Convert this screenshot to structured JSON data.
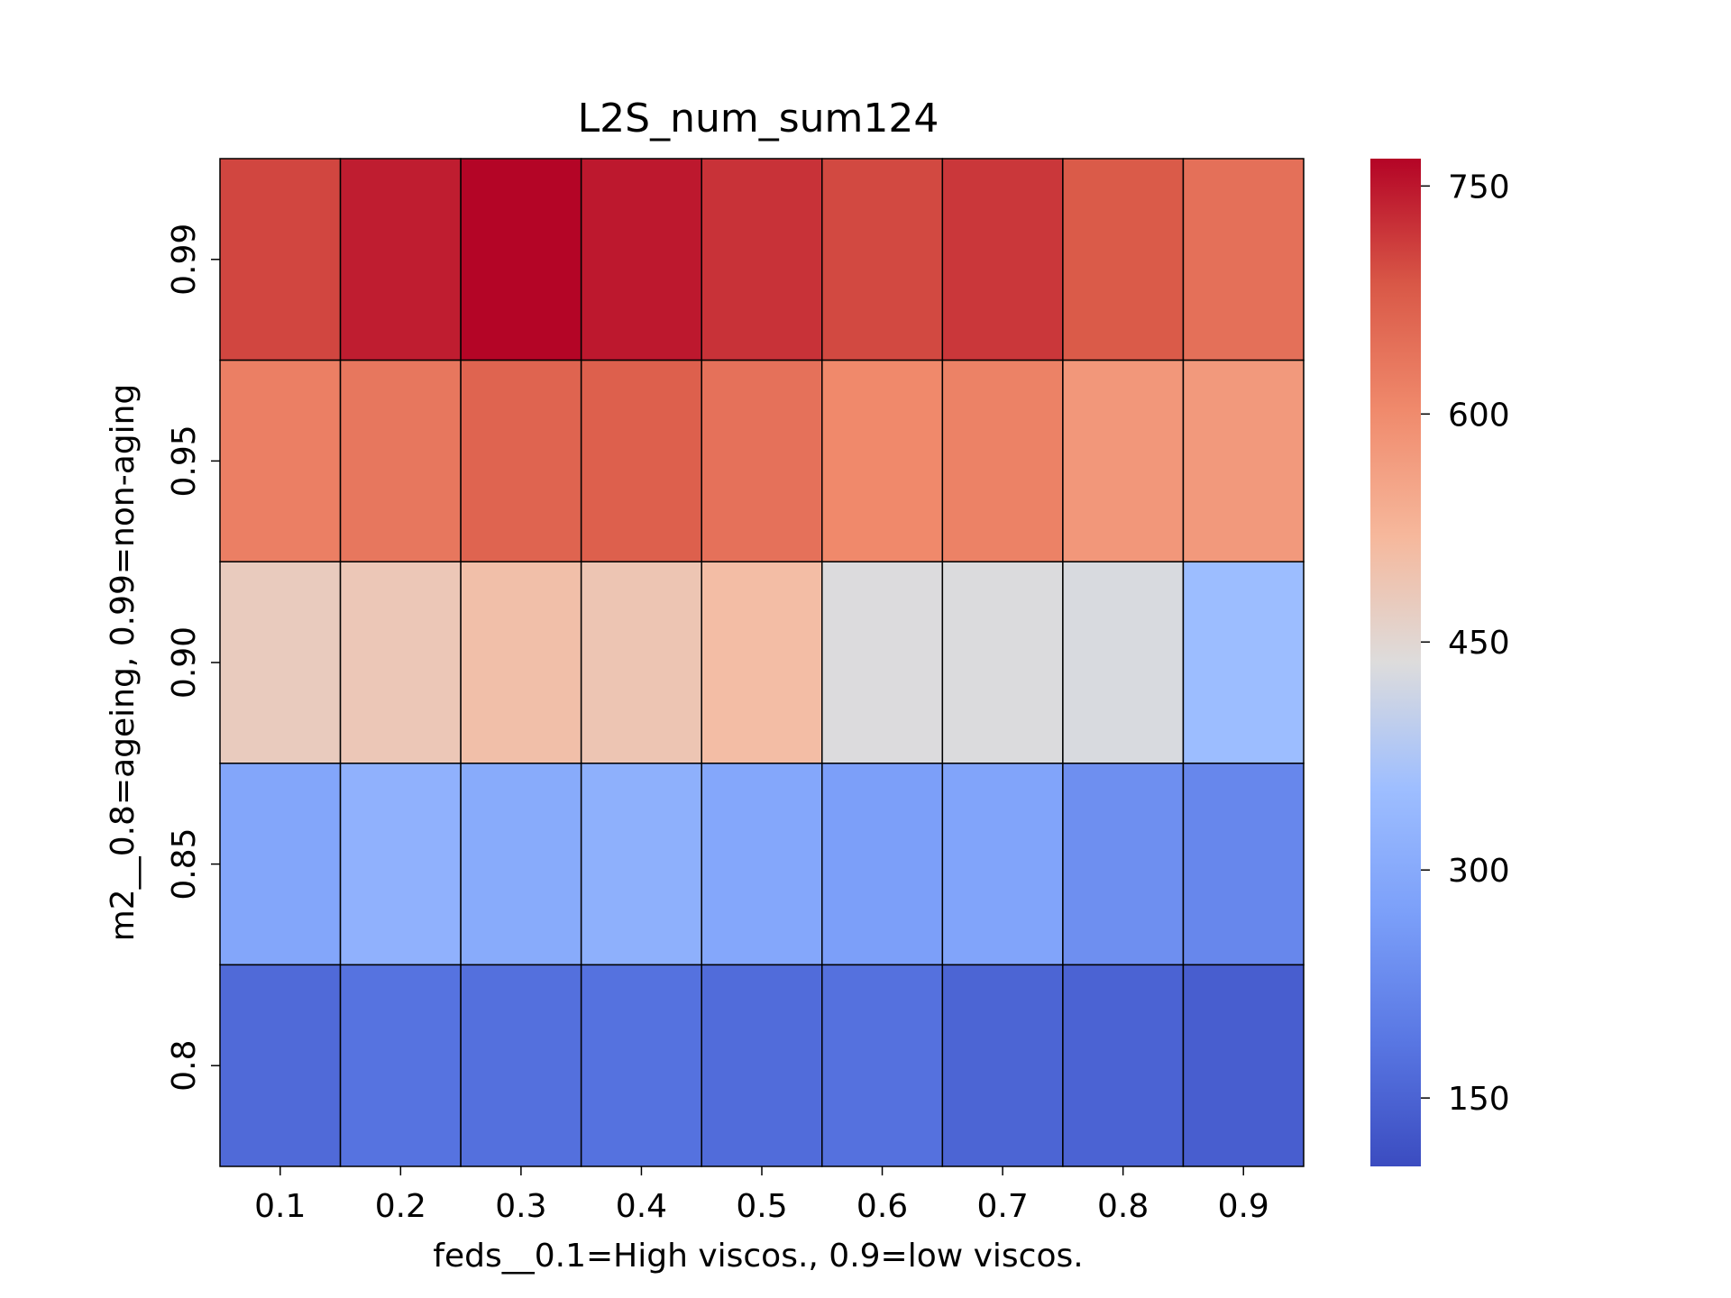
{
  "chart_data": {
    "type": "heatmap",
    "title": "L2S_num_sum124",
    "xlabel": "feds__0.1=High viscos., 0.9=low viscos.",
    "ylabel": "m2__0.8=ageing, 0.99=non-aging",
    "x_categories": [
      "0.1",
      "0.2",
      "0.3",
      "0.4",
      "0.5",
      "0.6",
      "0.7",
      "0.8",
      "0.9"
    ],
    "y_categories": [
      "0.99",
      "0.95",
      "0.90",
      "0.85",
      "0.8"
    ],
    "values": [
      [
        703,
        743,
        767,
        748,
        723,
        700,
        718,
        680,
        645
      ],
      [
        620,
        634,
        665,
        672,
        643,
        604,
        615,
        578,
        575
      ],
      [
        475,
        485,
        503,
        490,
        508,
        435,
        434,
        430,
        350
      ],
      [
        290,
        320,
        302,
        315,
        292,
        272,
        285,
        238,
        222
      ],
      [
        163,
        180,
        174,
        178,
        167,
        176,
        153,
        150,
        140
      ]
    ],
    "colormap": "coolwarm",
    "vmin": 105,
    "vmax": 768,
    "colorbar_ticks": [
      "150",
      "300",
      "450",
      "600",
      "750"
    ],
    "cell_border_color": "#000000",
    "grid": false,
    "legend": "colorbar-right"
  }
}
